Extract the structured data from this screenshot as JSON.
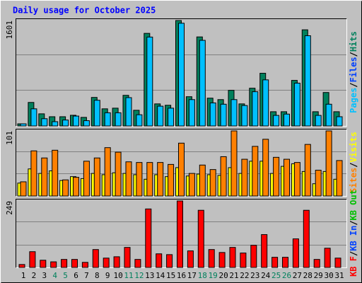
{
  "chart_data": [
    {
      "type": "bar",
      "title": "Daily usage for October 2025",
      "ylim": [
        0,
        1601
      ],
      "yticks": [
        1601
      ],
      "legend": [
        {
          "label": "Pages",
          "color": "#00c0ff"
        },
        {
          "label": "Files",
          "color": "#0040ff"
        },
        {
          "label": "Hits",
          "color": "#00805c"
        }
      ],
      "legend_separator": "/",
      "series": [
        {
          "color": "#00805c",
          "values": [
            32,
            357,
            184,
            140,
            140,
            162,
            130,
            433,
            260,
            270,
            465,
            238,
            1406,
            335,
            314,
            1601,
            444,
            1352,
            422,
            400,
            541,
            335,
            573,
            800,
            216,
            216,
            692,
            1460,
            216,
            508,
            216
          ]
        },
        {
          "color": "#00c0ff",
          "values": [
            32,
            260,
            110,
            65,
            90,
            150,
            80,
            390,
            200,
            200,
            430,
            170,
            1350,
            300,
            270,
            1560,
            400,
            1300,
            350,
            330,
            400,
            310,
            520,
            700,
            160,
            180,
            650,
            1370,
            160,
            330,
            140
          ]
        }
      ]
    },
    {
      "type": "bar",
      "ylim": [
        0,
        101
      ],
      "yticks": [
        101
      ],
      "legend": [
        {
          "label": "Sites",
          "color": "#ff8000"
        },
        {
          "label": "Visits",
          "color": "#ffff00"
        }
      ],
      "legend_separator": "/",
      "series": [
        {
          "color": "#ffff00",
          "values": [
            20,
            42,
            35,
            39,
            24,
            30,
            27,
            35,
            33,
            36,
            35,
            33,
            26,
            33,
            30,
            44,
            31,
            34,
            33,
            32,
            44,
            35,
            54,
            54,
            35,
            46,
            50,
            38,
            19,
            38,
            26
          ]
        },
        {
          "color": "#ff8000",
          "values": [
            22,
            70,
            59,
            71,
            25,
            29,
            54,
            59,
            75,
            68,
            53,
            52,
            52,
            52,
            49,
            82,
            35,
            48,
            41,
            61,
            101,
            57,
            77,
            88,
            60,
            57,
            52,
            80,
            40,
            101,
            55
          ]
        }
      ]
    },
    {
      "type": "bar",
      "ylim": [
        0,
        249
      ],
      "yticks": [
        249
      ],
      "legend": [
        {
          "label": "KB F",
          "color": "#ff0000"
        },
        {
          "label": "KB In",
          "color": "#0040ff"
        },
        {
          "label": "KB Out",
          "color": "#00c000"
        }
      ],
      "legend_separator": "/",
      "categories": [
        "1",
        "2",
        "3",
        "4",
        "5",
        "6",
        "7",
        "8",
        "9",
        "10",
        "11",
        "12",
        "13",
        "14",
        "15",
        "16",
        "17",
        "18",
        "19",
        "20",
        "21",
        "22",
        "23",
        "24",
        "25",
        "26",
        "27",
        "28",
        "29",
        "30",
        "31"
      ],
      "category_colors": [
        "#000000",
        "#000000",
        "#000000",
        "#00805c",
        "#00805c",
        "#000000",
        "#000000",
        "#000000",
        "#000000",
        "#000000",
        "#00805c",
        "#00805c",
        "#000000",
        "#000000",
        "#000000",
        "#000000",
        "#000000",
        "#00805c",
        "#00805c",
        "#000000",
        "#000000",
        "#000000",
        "#000000",
        "#000000",
        "#00805c",
        "#00805c",
        "#000000",
        "#000000",
        "#000000",
        "#000000",
        "#000000"
      ],
      "series": [
        {
          "color": "#ff0000",
          "values": [
            11,
            59,
            27,
            21,
            30,
            30,
            19,
            67,
            35,
            40,
            75,
            30,
            219,
            51,
            48,
            249,
            62,
            214,
            67,
            56,
            75,
            54,
            83,
            123,
            38,
            38,
            107,
            214,
            30,
            72,
            35
          ]
        }
      ]
    }
  ]
}
